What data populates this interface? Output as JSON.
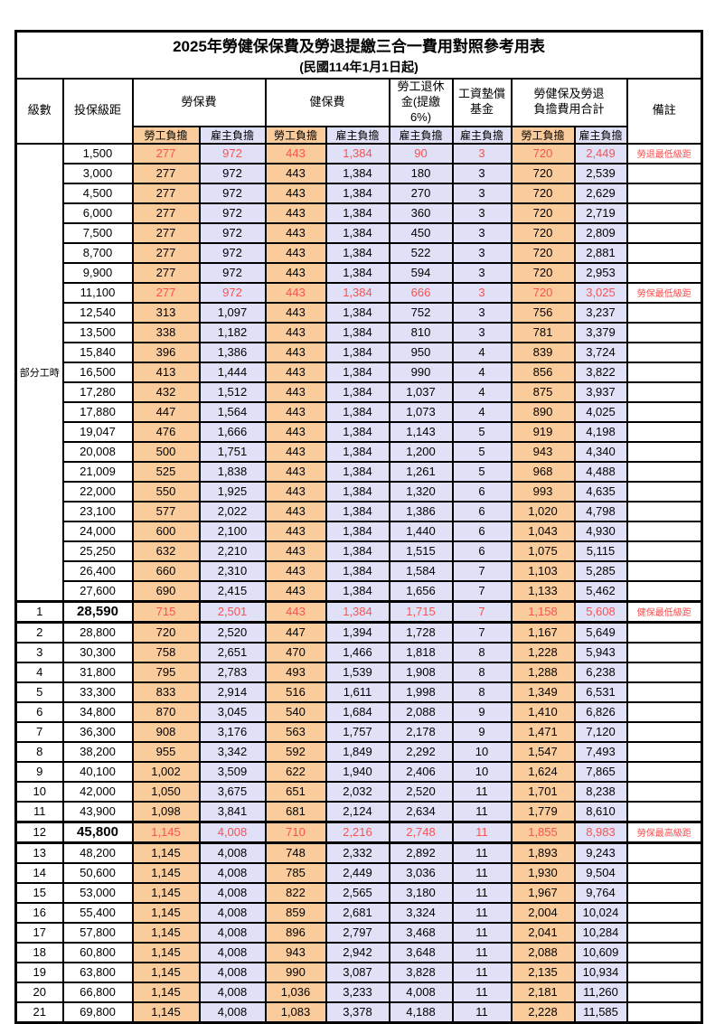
{
  "title": "2025年勞健保保費及勞退提繳三合一費用對照參考用表",
  "subtitle": "(民國114年1月1日起)",
  "colors": {
    "employee_fill": "#facc9c",
    "employer_fill": "#e0e0f6",
    "highlight_value_red": "#f85353",
    "note_red": "#ff4b4b",
    "border_black": "#000000"
  },
  "table": {
    "header": {
      "level": "級數",
      "salary_bracket": "投保級距",
      "labor_insurance": "勞保費",
      "health_insurance": "健保費",
      "pension": "勞工退休\n金(提繳6%)",
      "wage_fund": "工資墊償\n基金",
      "total": "勞健保及勞退\n負擔費用合計",
      "note": "備註",
      "employee": "勞工負擔",
      "employer": "雇主負擔"
    },
    "part_time_label": "部分工時",
    "part_time_rowspan": 23,
    "rows": [
      {
        "level": "",
        "salary": "1,500",
        "cells": [
          "277",
          "972",
          "443",
          "1,384",
          "90",
          "3",
          "720",
          "2,449"
        ],
        "note": "勞退最低級距",
        "red": true
      },
      {
        "level": "",
        "salary": "3,000",
        "cells": [
          "277",
          "972",
          "443",
          "1,384",
          "180",
          "3",
          "720",
          "2,539"
        ],
        "note": ""
      },
      {
        "level": "",
        "salary": "4,500",
        "cells": [
          "277",
          "972",
          "443",
          "1,384",
          "270",
          "3",
          "720",
          "2,629"
        ],
        "note": ""
      },
      {
        "level": "",
        "salary": "6,000",
        "cells": [
          "277",
          "972",
          "443",
          "1,384",
          "360",
          "3",
          "720",
          "2,719"
        ],
        "note": ""
      },
      {
        "level": "",
        "salary": "7,500",
        "cells": [
          "277",
          "972",
          "443",
          "1,384",
          "450",
          "3",
          "720",
          "2,809"
        ],
        "note": ""
      },
      {
        "level": "",
        "salary": "8,700",
        "cells": [
          "277",
          "972",
          "443",
          "1,384",
          "522",
          "3",
          "720",
          "2,881"
        ],
        "note": ""
      },
      {
        "level": "",
        "salary": "9,900",
        "cells": [
          "277",
          "972",
          "443",
          "1,384",
          "594",
          "3",
          "720",
          "2,953"
        ],
        "note": ""
      },
      {
        "level": "",
        "salary": "11,100",
        "cells": [
          "277",
          "972",
          "443",
          "1,384",
          "666",
          "3",
          "720",
          "3,025"
        ],
        "note": "勞保最低級距",
        "red": true
      },
      {
        "level": "",
        "salary": "12,540",
        "cells": [
          "313",
          "1,097",
          "443",
          "1,384",
          "752",
          "3",
          "756",
          "3,237"
        ],
        "note": ""
      },
      {
        "level": "",
        "salary": "13,500",
        "cells": [
          "338",
          "1,182",
          "443",
          "1,384",
          "810",
          "3",
          "781",
          "3,379"
        ],
        "note": ""
      },
      {
        "level": "",
        "salary": "15,840",
        "cells": [
          "396",
          "1,386",
          "443",
          "1,384",
          "950",
          "4",
          "839",
          "3,724"
        ],
        "note": ""
      },
      {
        "level": "",
        "salary": "16,500",
        "cells": [
          "413",
          "1,444",
          "443",
          "1,384",
          "990",
          "4",
          "856",
          "3,822"
        ],
        "note": ""
      },
      {
        "level": "",
        "salary": "17,280",
        "cells": [
          "432",
          "1,512",
          "443",
          "1,384",
          "1,037",
          "4",
          "875",
          "3,937"
        ],
        "note": ""
      },
      {
        "level": "",
        "salary": "17,880",
        "cells": [
          "447",
          "1,564",
          "443",
          "1,384",
          "1,073",
          "4",
          "890",
          "4,025"
        ],
        "note": ""
      },
      {
        "level": "",
        "salary": "19,047",
        "cells": [
          "476",
          "1,666",
          "443",
          "1,384",
          "1,143",
          "5",
          "919",
          "4,198"
        ],
        "note": ""
      },
      {
        "level": "",
        "salary": "20,008",
        "cells": [
          "500",
          "1,751",
          "443",
          "1,384",
          "1,200",
          "5",
          "943",
          "4,340"
        ],
        "note": ""
      },
      {
        "level": "",
        "salary": "21,009",
        "cells": [
          "525",
          "1,838",
          "443",
          "1,384",
          "1,261",
          "5",
          "968",
          "4,488"
        ],
        "note": ""
      },
      {
        "level": "",
        "salary": "22,000",
        "cells": [
          "550",
          "1,925",
          "443",
          "1,384",
          "1,320",
          "6",
          "993",
          "4,635"
        ],
        "note": ""
      },
      {
        "level": "",
        "salary": "23,100",
        "cells": [
          "577",
          "2,022",
          "443",
          "1,384",
          "1,386",
          "6",
          "1,020",
          "4,798"
        ],
        "note": ""
      },
      {
        "level": "",
        "salary": "24,000",
        "cells": [
          "600",
          "2,100",
          "443",
          "1,384",
          "1,440",
          "6",
          "1,043",
          "4,930"
        ],
        "note": ""
      },
      {
        "level": "",
        "salary": "25,250",
        "cells": [
          "632",
          "2,210",
          "443",
          "1,384",
          "1,515",
          "6",
          "1,075",
          "5,115"
        ],
        "note": ""
      },
      {
        "level": "",
        "salary": "26,400",
        "cells": [
          "660",
          "2,310",
          "443",
          "1,384",
          "1,584",
          "7",
          "1,103",
          "5,285"
        ],
        "note": ""
      },
      {
        "level": "",
        "salary": "27,600",
        "cells": [
          "690",
          "2,415",
          "443",
          "1,384",
          "1,656",
          "7",
          "1,133",
          "5,462"
        ],
        "note": ""
      },
      {
        "level": "1",
        "salary": "28,590",
        "cells": [
          "715",
          "2,501",
          "443",
          "1,384",
          "1,715",
          "7",
          "1,158",
          "5,608"
        ],
        "note": "健保最低級距",
        "red": true,
        "bold_salary": true,
        "thick": true
      },
      {
        "level": "2",
        "salary": "28,800",
        "cells": [
          "720",
          "2,520",
          "447",
          "1,394",
          "1,728",
          "7",
          "1,167",
          "5,649"
        ],
        "note": ""
      },
      {
        "level": "3",
        "salary": "30,300",
        "cells": [
          "758",
          "2,651",
          "470",
          "1,466",
          "1,818",
          "8",
          "1,228",
          "5,943"
        ],
        "note": ""
      },
      {
        "level": "4",
        "salary": "31,800",
        "cells": [
          "795",
          "2,783",
          "493",
          "1,539",
          "1,908",
          "8",
          "1,288",
          "6,238"
        ],
        "note": ""
      },
      {
        "level": "5",
        "salary": "33,300",
        "cells": [
          "833",
          "2,914",
          "516",
          "1,611",
          "1,998",
          "8",
          "1,349",
          "6,531"
        ],
        "note": ""
      },
      {
        "level": "6",
        "salary": "34,800",
        "cells": [
          "870",
          "3,045",
          "540",
          "1,684",
          "2,088",
          "9",
          "1,410",
          "6,826"
        ],
        "note": ""
      },
      {
        "level": "7",
        "salary": "36,300",
        "cells": [
          "908",
          "3,176",
          "563",
          "1,757",
          "2,178",
          "9",
          "1,471",
          "7,120"
        ],
        "note": ""
      },
      {
        "level": "8",
        "salary": "38,200",
        "cells": [
          "955",
          "3,342",
          "592",
          "1,849",
          "2,292",
          "10",
          "1,547",
          "7,493"
        ],
        "note": ""
      },
      {
        "level": "9",
        "salary": "40,100",
        "cells": [
          "1,002",
          "3,509",
          "622",
          "1,940",
          "2,406",
          "10",
          "1,624",
          "7,865"
        ],
        "note": ""
      },
      {
        "level": "10",
        "salary": "42,000",
        "cells": [
          "1,050",
          "3,675",
          "651",
          "2,032",
          "2,520",
          "11",
          "1,701",
          "8,238"
        ],
        "note": ""
      },
      {
        "level": "11",
        "salary": "43,900",
        "cells": [
          "1,098",
          "3,841",
          "681",
          "2,124",
          "2,634",
          "11",
          "1,779",
          "8,610"
        ],
        "note": ""
      },
      {
        "level": "12",
        "salary": "45,800",
        "cells": [
          "1,145",
          "4,008",
          "710",
          "2,216",
          "2,748",
          "11",
          "1,855",
          "8,983"
        ],
        "note": "勞保最高級距",
        "red": true,
        "bold_salary": true,
        "thick": true
      },
      {
        "level": "13",
        "salary": "48,200",
        "cells": [
          "1,145",
          "4,008",
          "748",
          "2,332",
          "2,892",
          "11",
          "1,893",
          "9,243"
        ],
        "note": ""
      },
      {
        "level": "14",
        "salary": "50,600",
        "cells": [
          "1,145",
          "4,008",
          "785",
          "2,449",
          "3,036",
          "11",
          "1,930",
          "9,504"
        ],
        "note": ""
      },
      {
        "level": "15",
        "salary": "53,000",
        "cells": [
          "1,145",
          "4,008",
          "822",
          "2,565",
          "3,180",
          "11",
          "1,967",
          "9,764"
        ],
        "note": ""
      },
      {
        "level": "16",
        "salary": "55,400",
        "cells": [
          "1,145",
          "4,008",
          "859",
          "2,681",
          "3,324",
          "11",
          "2,004",
          "10,024"
        ],
        "note": ""
      },
      {
        "level": "17",
        "salary": "57,800",
        "cells": [
          "1,145",
          "4,008",
          "896",
          "2,797",
          "3,468",
          "11",
          "2,041",
          "10,284"
        ],
        "note": ""
      },
      {
        "level": "18",
        "salary": "60,800",
        "cells": [
          "1,145",
          "4,008",
          "943",
          "2,942",
          "3,648",
          "11",
          "2,088",
          "10,609"
        ],
        "note": ""
      },
      {
        "level": "19",
        "salary": "63,800",
        "cells": [
          "1,145",
          "4,008",
          "990",
          "3,087",
          "3,828",
          "11",
          "2,135",
          "10,934"
        ],
        "note": ""
      },
      {
        "level": "20",
        "salary": "66,800",
        "cells": [
          "1,145",
          "4,008",
          "1,036",
          "3,233",
          "4,008",
          "11",
          "2,181",
          "11,260"
        ],
        "note": ""
      },
      {
        "level": "21",
        "salary": "69,800",
        "cells": [
          "1,145",
          "4,008",
          "1,083",
          "3,378",
          "4,188",
          "11",
          "2,228",
          "11,585"
        ],
        "note": ""
      }
    ]
  }
}
